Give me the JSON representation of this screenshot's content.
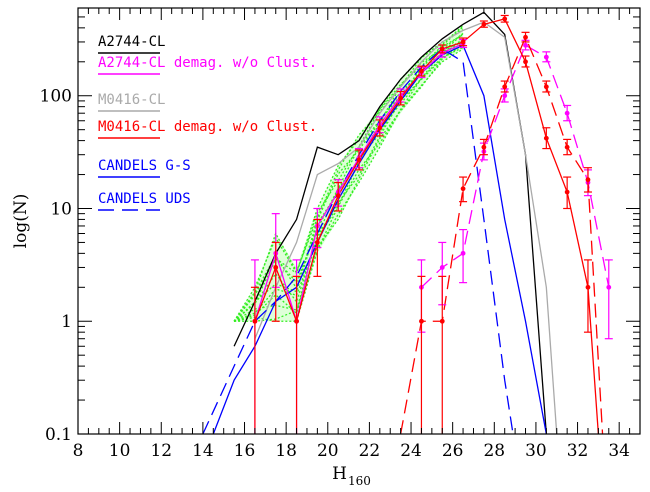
{
  "chart_data": {
    "type": "line",
    "title": "",
    "xlabel": "H",
    "xlabel_sub": "160",
    "ylabel": "log(N)",
    "xlim": [
      8,
      35
    ],
    "ylim": [
      0.1,
      600
    ],
    "yscale": "log",
    "xticks": [
      8,
      10,
      12,
      14,
      16,
      18,
      20,
      22,
      24,
      26,
      28,
      30,
      32,
      34
    ],
    "yticks": [
      {
        "value": 0.1,
        "label": "0.1"
      },
      {
        "value": 1,
        "label": "1"
      },
      {
        "value": 10,
        "label": "10"
      },
      {
        "value": 100,
        "label": "100"
      }
    ],
    "grid": false,
    "legend_position": "top-left",
    "legend": [
      {
        "label": "A2744-CL",
        "color": "#000000",
        "dash": "solid"
      },
      {
        "label": "A2744-CL demag. w/o Clust.",
        "color": "#ff00ff",
        "dash": "solid"
      },
      {
        "label": "M0416-CL",
        "color": "#aaaaaa",
        "dash": "solid"
      },
      {
        "label": "M0416-CL demag. w/o Clust.",
        "color": "#ff0000",
        "dash": "solid"
      },
      {
        "label": "CANDELS G-S",
        "color": "#0000ff",
        "dash": "solid"
      },
      {
        "label": "CANDELS UDS",
        "color": "#0000ff",
        "dash": "dashed"
      }
    ],
    "series": [
      {
        "name": "A2744-CL",
        "color": "#000000",
        "style": "solid",
        "x": [
          15.5,
          16.5,
          17.5,
          18.5,
          19.5,
          20.5,
          21.5,
          22.5,
          23.5,
          24.5,
          25.5,
          26.5,
          27.5,
          28.5,
          29.5,
          30.5
        ],
        "y": [
          0.6,
          1.5,
          4,
          8,
          35,
          30,
          40,
          80,
          140,
          220,
          320,
          430,
          550,
          350,
          30,
          0.1
        ]
      },
      {
        "name": "M0416-CL",
        "color": "#aaaaaa",
        "style": "solid",
        "x": [
          16.5,
          17.5,
          18.5,
          19.5,
          20.5,
          21.5,
          22.5,
          23.5,
          24.5,
          25.5,
          26.5,
          27.5,
          28.5,
          29.5,
          30.5,
          31
        ],
        "y": [
          0.7,
          2,
          5,
          20,
          25,
          35,
          70,
          120,
          200,
          300,
          380,
          450,
          330,
          30,
          2,
          0.1
        ]
      },
      {
        "name": "CANDELS G-S",
        "color": "#0000ff",
        "style": "solid",
        "x": [
          14.5,
          15.5,
          16.5,
          17.5,
          18.5,
          19.5,
          20.5,
          21.5,
          22.5,
          23.5,
          24.5,
          25.5,
          26.5,
          27.5,
          28.5,
          29.5,
          30.5
        ],
        "y": [
          0.1,
          0.3,
          0.6,
          1.5,
          2,
          5,
          12,
          25,
          50,
          90,
          160,
          230,
          280,
          100,
          8,
          1,
          0.1
        ]
      },
      {
        "name": "CANDELS UDS",
        "color": "#0000ff",
        "style": "dashed",
        "x": [
          14.0,
          15.5,
          16.5,
          17.5,
          18.5,
          19.5,
          20.5,
          21.5,
          22.5,
          23.5,
          24.5,
          25.5,
          26.5,
          27.5,
          28.5,
          28.9
        ],
        "y": [
          0.1,
          0.4,
          1,
          1.5,
          2.5,
          6,
          14,
          30,
          60,
          110,
          180,
          260,
          200,
          8,
          0.3,
          0.1
        ]
      },
      {
        "name": "A2744-CL demag. w/o Clust.",
        "color": "#ff00ff",
        "style": "solid",
        "markers": true,
        "x": [
          16.5,
          17.5,
          18.5,
          19.5,
          20.5,
          21.5,
          22.5,
          23.5,
          24.5,
          25.5,
          26.5
        ],
        "y": [
          1,
          4,
          1,
          7,
          14,
          28,
          55,
          100,
          160,
          240,
          290
        ],
        "yerr_up": [
          2.5,
          5,
          2.5,
          3,
          4,
          6,
          10,
          15,
          18,
          22,
          25
        ],
        "yerr_low": [
          0.999,
          2,
          0.999,
          2.5,
          3.5,
          5,
          8,
          12,
          15,
          20,
          22
        ]
      },
      {
        "name": "A2744-CL demag. w/o Clust.",
        "color": "#ff00ff",
        "style": "dashed",
        "markers": true,
        "x": [
          24.5,
          25.5,
          26.5,
          27.5,
          28.5,
          29.5,
          30.5,
          31.5,
          32.5,
          33.5
        ],
        "y": [
          2,
          3,
          4,
          32,
          100,
          280,
          220,
          70,
          17,
          2
        ],
        "yerr_up": [
          1.5,
          2,
          2.5,
          6,
          15,
          30,
          25,
          12,
          5,
          1.5
        ],
        "yerr_low": [
          1.2,
          1.6,
          1.8,
          5,
          12,
          25,
          20,
          10,
          4,
          1.3
        ]
      },
      {
        "name": "M0416-CL demag. w/o Clust.",
        "color": "#ff0000",
        "style": "solid",
        "markers": true,
        "x": [
          16.5,
          17.5,
          18.5,
          19.5,
          20.5,
          21.5,
          22.5,
          23.5,
          24.5,
          25.5,
          26.5,
          27.5,
          28.5,
          29.5,
          30.5,
          31.5,
          32.5,
          33.0
        ],
        "y": [
          1,
          3,
          1,
          5,
          13,
          27,
          52,
          95,
          165,
          260,
          300,
          430,
          480,
          200,
          42,
          14,
          2,
          0.1
        ],
        "yerr_up": [
          1,
          2,
          1.5,
          3,
          4,
          6,
          9,
          14,
          18,
          22,
          25,
          30,
          35,
          25,
          10,
          5,
          1.5,
          0
        ],
        "yerr_low": [
          0.999,
          2,
          0.999,
          2.5,
          3.5,
          5,
          8,
          12,
          15,
          20,
          22,
          25,
          30,
          20,
          8,
          4,
          1.2,
          0
        ]
      },
      {
        "name": "M0416-CL demag. w/o Clust.",
        "color": "#ff0000",
        "style": "dashed",
        "markers": true,
        "x": [
          23.5,
          24.5,
          25.5,
          26.5,
          27.5,
          28.5,
          29.5,
          30.5,
          31.5,
          32.5,
          33.2
        ],
        "y": [
          0.1,
          1,
          1,
          15,
          35,
          120,
          330,
          120,
          35,
          18,
          0.1
        ],
        "yerr_up": [
          0,
          1.5,
          1.5,
          4,
          6,
          15,
          35,
          15,
          6,
          5,
          0
        ],
        "yerr_low": [
          0,
          0.999,
          0.999,
          3.5,
          5,
          12,
          30,
          12,
          5,
          4,
          0
        ]
      }
    ],
    "ensemble": {
      "color": "#33ee22",
      "style": "dotted",
      "x": [
        15.5,
        16.5,
        17.5,
        18.5,
        19.5,
        20.5,
        21.5,
        22.5,
        23.5,
        24.5,
        25.5,
        26.5
      ],
      "low": [
        1,
        1,
        1,
        1,
        4,
        8,
        17,
        35,
        70,
        120,
        200,
        260
      ],
      "high": [
        1,
        2,
        6,
        3,
        10,
        24,
        45,
        80,
        140,
        220,
        300,
        420
      ]
    }
  }
}
